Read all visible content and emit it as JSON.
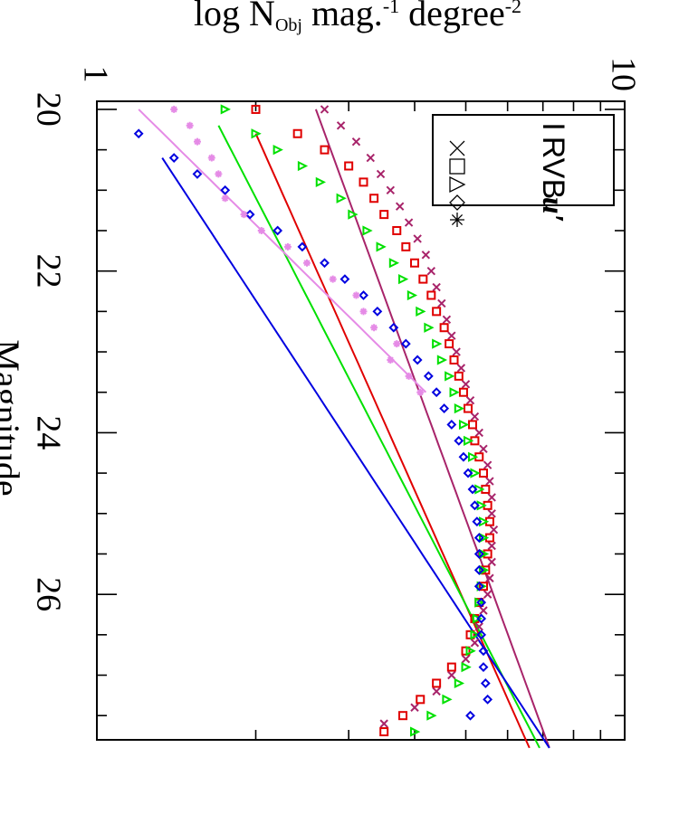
{
  "chart_data": {
    "type": "scatter",
    "title": "",
    "xlabel": "Magnitude",
    "ylabel": {
      "base": "log N",
      "sub": "Obj",
      "mid1": " mag.",
      "sup1": "-1",
      "mid2": " degree",
      "sup2": "-2"
    },
    "xlim": [
      19.9,
      27.8
    ],
    "ylim": [
      1,
      10
    ],
    "yscale": "log",
    "x_ticks": [
      "20",
      "22",
      "24",
      "26"
    ],
    "y_ticks": [
      "1",
      "10"
    ],
    "legend": {
      "placement": "top-left",
      "entries": [
        {
          "name": "u′",
          "symbol": "asterisk",
          "color": "#e58be6"
        },
        {
          "name": "B",
          "symbol": "diamond",
          "color": "#0000e0"
        },
        {
          "name": "V",
          "symbol": "triangle",
          "color": "#00e000"
        },
        {
          "name": "R",
          "symbol": "square",
          "color": "#e00000"
        },
        {
          "name": "I",
          "symbol": "cross",
          "color": "#a8246a"
        }
      ]
    },
    "series": [
      {
        "name": "I",
        "symbol": "cross",
        "color": "#a8246a",
        "x": [
          20.0,
          20.2,
          20.4,
          20.6,
          20.8,
          21.0,
          21.2,
          21.4,
          21.6,
          21.8,
          22.0,
          22.2,
          22.4,
          22.6,
          22.8,
          23.0,
          23.2,
          23.4,
          23.6,
          23.8,
          24.0,
          24.2,
          24.4,
          24.6,
          24.8,
          25.0,
          25.2,
          25.4,
          25.6,
          25.8,
          26.0,
          26.2,
          26.4,
          26.6,
          26.8,
          27.0,
          27.2,
          27.4,
          27.6
        ],
        "y": [
          2.7,
          2.9,
          3.1,
          3.3,
          3.45,
          3.6,
          3.75,
          3.9,
          4.05,
          4.2,
          4.3,
          4.4,
          4.5,
          4.6,
          4.7,
          4.8,
          4.9,
          5.0,
          5.1,
          5.2,
          5.3,
          5.4,
          5.5,
          5.55,
          5.6,
          5.6,
          5.65,
          5.6,
          5.6,
          5.55,
          5.5,
          5.4,
          5.3,
          5.2,
          5.0,
          4.7,
          4.4,
          4.0,
          3.5
        ],
        "fit": {
          "x": [
            20.0,
            27.9
          ],
          "y": [
            2.6,
            7.2
          ]
        }
      },
      {
        "name": "R",
        "symbol": "square",
        "color": "#e00000",
        "x": [
          20.0,
          20.3,
          20.5,
          20.7,
          20.9,
          21.1,
          21.3,
          21.5,
          21.7,
          21.9,
          22.1,
          22.3,
          22.5,
          22.7,
          22.9,
          23.1,
          23.3,
          23.5,
          23.7,
          23.9,
          24.1,
          24.3,
          24.5,
          24.7,
          24.9,
          25.1,
          25.3,
          25.5,
          25.7,
          25.9,
          26.1,
          26.3,
          26.5,
          26.7,
          26.9,
          27.1,
          27.3,
          27.5,
          27.7
        ],
        "y": [
          2.0,
          2.4,
          2.7,
          3.0,
          3.2,
          3.35,
          3.5,
          3.7,
          3.85,
          4.0,
          4.15,
          4.3,
          4.4,
          4.55,
          4.65,
          4.75,
          4.85,
          4.95,
          5.05,
          5.15,
          5.2,
          5.3,
          5.4,
          5.45,
          5.5,
          5.55,
          5.55,
          5.5,
          5.45,
          5.4,
          5.3,
          5.2,
          5.1,
          5.0,
          4.7,
          4.4,
          4.1,
          3.8,
          3.5
        ],
        "fit": {
          "x": [
            20.3,
            27.9
          ],
          "y": [
            2.0,
            6.6
          ]
        }
      },
      {
        "name": "V",
        "symbol": "triangle",
        "color": "#00e000",
        "x": [
          20.0,
          20.3,
          20.5,
          20.7,
          20.9,
          21.1,
          21.3,
          21.5,
          21.7,
          21.9,
          22.1,
          22.3,
          22.5,
          22.7,
          22.9,
          23.1,
          23.3,
          23.5,
          23.7,
          23.9,
          24.1,
          24.3,
          24.5,
          24.7,
          24.9,
          25.1,
          25.3,
          25.5,
          25.7,
          25.9,
          26.1,
          26.3,
          26.5,
          26.7,
          26.9,
          27.1,
          27.3,
          27.5,
          27.7
        ],
        "y": [
          1.75,
          2.0,
          2.2,
          2.45,
          2.65,
          2.9,
          3.05,
          3.25,
          3.45,
          3.65,
          3.8,
          3.95,
          4.1,
          4.25,
          4.4,
          4.5,
          4.65,
          4.75,
          4.85,
          4.95,
          5.05,
          5.15,
          5.2,
          5.3,
          5.35,
          5.4,
          5.4,
          5.4,
          5.4,
          5.35,
          5.3,
          5.25,
          5.2,
          5.1,
          5.0,
          4.85,
          4.6,
          4.3,
          4.0
        ],
        "fit": {
          "x": [
            20.2,
            27.9
          ],
          "y": [
            1.7,
            6.9
          ]
        }
      },
      {
        "name": "B",
        "symbol": "diamond",
        "color": "#0000e0",
        "x": [
          20.3,
          20.6,
          20.8,
          21.0,
          21.3,
          21.5,
          21.7,
          21.9,
          22.1,
          22.3,
          22.5,
          22.7,
          22.9,
          23.1,
          23.3,
          23.5,
          23.7,
          23.9,
          24.1,
          24.3,
          24.5,
          24.7,
          24.9,
          25.1,
          25.3,
          25.5,
          25.7,
          25.9,
          26.1,
          26.3,
          26.5,
          26.7,
          26.9,
          27.1,
          27.3,
          27.5
        ],
        "y": [
          1.2,
          1.4,
          1.55,
          1.75,
          1.95,
          2.2,
          2.45,
          2.7,
          2.95,
          3.2,
          3.4,
          3.65,
          3.85,
          4.05,
          4.25,
          4.4,
          4.55,
          4.7,
          4.85,
          4.95,
          5.05,
          5.15,
          5.2,
          5.25,
          5.3,
          5.3,
          5.3,
          5.3,
          5.35,
          5.35,
          5.35,
          5.4,
          5.4,
          5.45,
          5.5,
          5.1
        ],
        "fit": {
          "x": [
            20.6,
            27.9
          ],
          "y": [
            1.33,
            7.2
          ]
        }
      },
      {
        "name": "u′",
        "symbol": "asterisk",
        "color": "#e58be6",
        "x": [
          20.0,
          20.2,
          20.4,
          20.6,
          20.8,
          21.1,
          21.3,
          21.5,
          21.7,
          21.9,
          22.1,
          22.3,
          22.5,
          22.7,
          22.9,
          23.1,
          23.3,
          23.5
        ],
        "y": [
          1.4,
          1.5,
          1.55,
          1.65,
          1.7,
          1.75,
          1.9,
          2.05,
          2.3,
          2.5,
          2.8,
          3.1,
          3.2,
          3.35,
          3.7,
          3.6,
          3.9,
          4.1
        ],
        "fit": {
          "x": [
            20.0,
            23.5
          ],
          "y": [
            1.2,
            4.2
          ]
        }
      }
    ]
  }
}
